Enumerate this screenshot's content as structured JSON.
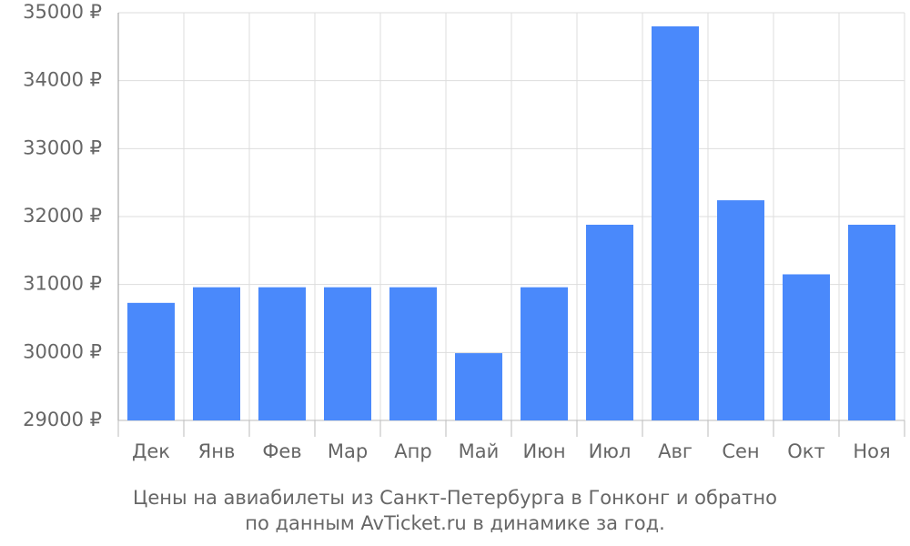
{
  "chart_data": {
    "type": "bar",
    "title": [
      "Цены на авиабилеты из Санкт-Петербурга в Гонконг и обратно",
      "по данным AvTicket.ru в динамике за год."
    ],
    "categories": [
      "Дек",
      "Янв",
      "Фев",
      "Мар",
      "Апр",
      "Май",
      "Июн",
      "Июл",
      "Авг",
      "Сен",
      "Окт",
      "Ноя"
    ],
    "values": [
      30730,
      30960,
      30960,
      30960,
      30960,
      29990,
      30960,
      31880,
      34800,
      32240,
      31150,
      31880
    ],
    "color": "#4a89fb",
    "ylim": [
      29000,
      35000
    ],
    "yticks": [
      {
        "value": 29000,
        "label": "29000 ₽"
      },
      {
        "value": 30000,
        "label": "30000 ₽"
      },
      {
        "value": 31000,
        "label": "31000 ₽"
      },
      {
        "value": 32000,
        "label": "32000 ₽"
      },
      {
        "value": 33000,
        "label": "33000 ₽"
      },
      {
        "value": 34000,
        "label": "34000 ₽"
      },
      {
        "value": 35000,
        "label": "35000 ₽"
      }
    ],
    "grid": true
  }
}
